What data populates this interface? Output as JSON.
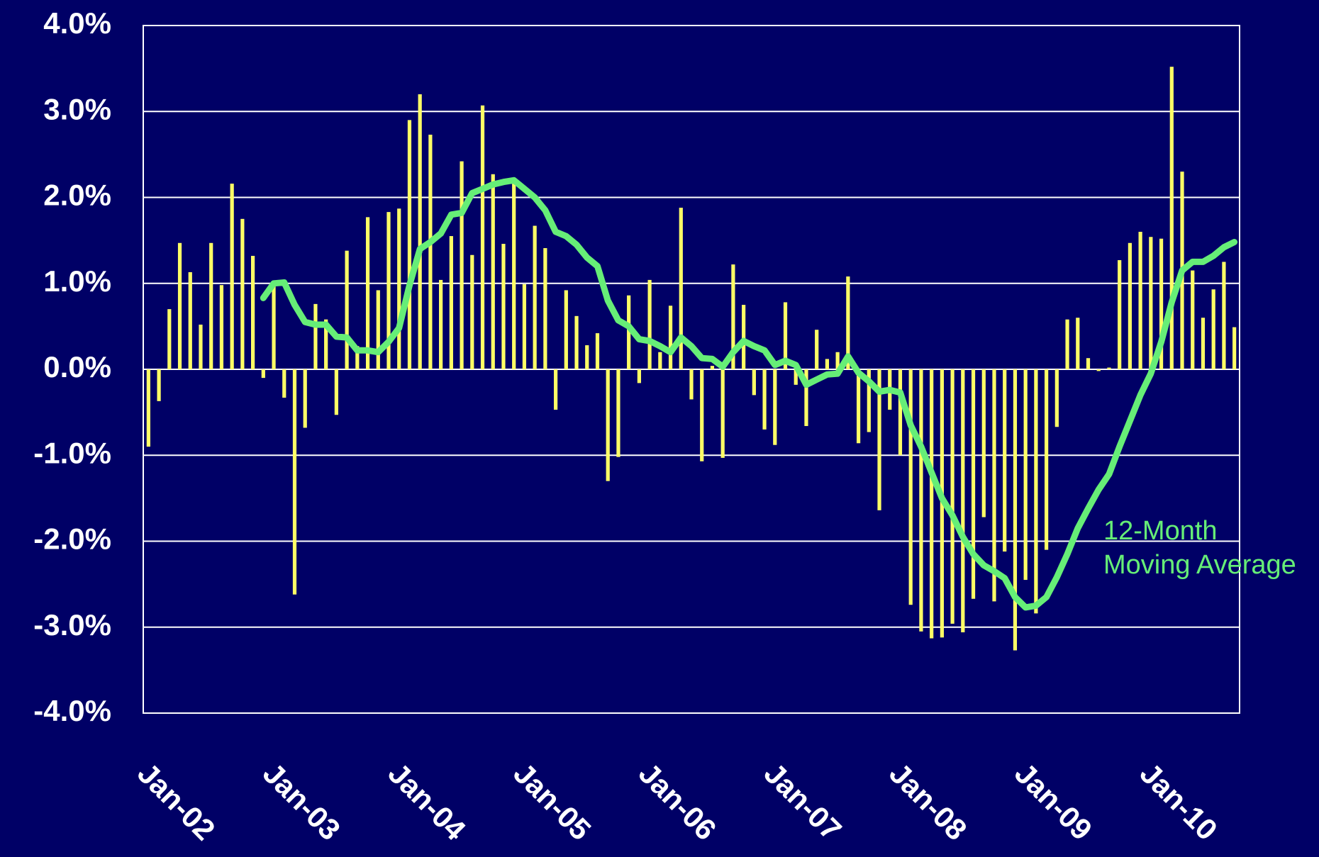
{
  "chart_data": {
    "type": "bar-line",
    "categories": [
      "Jan-02",
      null,
      null,
      null,
      null,
      null,
      null,
      null,
      null,
      null,
      null,
      null,
      "Jan-03",
      null,
      null,
      null,
      null,
      null,
      null,
      null,
      null,
      null,
      null,
      null,
      "Jan-04",
      null,
      null,
      null,
      null,
      null,
      null,
      null,
      null,
      null,
      null,
      null,
      "Jan-05",
      null,
      null,
      null,
      null,
      null,
      null,
      null,
      null,
      null,
      null,
      null,
      "Jan-06",
      null,
      null,
      null,
      null,
      null,
      null,
      null,
      null,
      null,
      null,
      null,
      "Jan-07",
      null,
      null,
      null,
      null,
      null,
      null,
      null,
      null,
      null,
      null,
      null,
      "Jan-08",
      null,
      null,
      null,
      null,
      null,
      null,
      null,
      null,
      null,
      null,
      null,
      "Jan-09",
      null,
      null,
      null,
      null,
      null,
      null,
      null,
      null,
      null,
      null,
      null,
      "Jan-10",
      null,
      null,
      null,
      null,
      null,
      null,
      null,
      null
    ],
    "series": [
      {
        "type": "bar",
        "color": "#ffff66",
        "values": [
          -0.9,
          -0.37,
          0.7,
          1.47,
          1.13,
          0.52,
          1.47,
          0.98,
          2.16,
          1.75,
          1.32,
          -0.1,
          0.97,
          -0.33,
          -2.62,
          -0.68,
          0.76,
          0.58,
          -0.53,
          1.38,
          0.27,
          1.77,
          0.92,
          1.83,
          1.87,
          2.9,
          3.2,
          2.73,
          1.04,
          1.55,
          2.42,
          1.33,
          3.07,
          2.27,
          1.46,
          2.2,
          0.99,
          1.67,
          1.41,
          -0.47,
          0.92,
          0.62,
          0.28,
          0.42,
          -1.3,
          -1.02,
          0.86,
          -0.16,
          1.04,
          0.2,
          0.74,
          1.88,
          -0.35,
          -1.07,
          0.04,
          -1.03,
          1.22,
          0.75,
          -0.3,
          -0.7,
          -0.88,
          0.78,
          -0.18,
          -0.66,
          0.46,
          0.12,
          0.2,
          1.08,
          -0.86,
          -0.73,
          -1.64,
          -0.47,
          -1.0,
          -2.74,
          -3.05,
          -3.13,
          -3.12,
          -2.96,
          -3.06,
          -2.67,
          -1.72,
          -2.7,
          -2.12,
          -3.27,
          -2.45,
          -2.84,
          -2.1,
          -0.67,
          0.58,
          0.6,
          0.13,
          -0.02,
          0.02,
          1.27,
          1.47,
          1.6,
          1.54,
          1.52,
          3.52,
          2.3,
          1.15,
          0.6,
          0.93,
          1.25,
          0.49
        ]
      },
      {
        "type": "line",
        "color": "#66ee77",
        "values": [
          null,
          null,
          null,
          null,
          null,
          null,
          null,
          null,
          null,
          null,
          null,
          0.83,
          1.0,
          1.01,
          0.75,
          0.55,
          0.52,
          0.52,
          0.38,
          0.37,
          0.22,
          0.22,
          0.2,
          0.32,
          0.48,
          0.98,
          1.4,
          1.48,
          1.58,
          1.8,
          1.82,
          2.05,
          2.1,
          2.15,
          2.18,
          2.2,
          2.1,
          2.0,
          1.85,
          1.6,
          1.55,
          1.45,
          1.3,
          1.2,
          0.8,
          0.57,
          0.5,
          0.35,
          0.33,
          0.27,
          0.2,
          0.37,
          0.27,
          0.13,
          0.12,
          0.03,
          0.2,
          0.33,
          0.27,
          0.22,
          0.05,
          0.1,
          0.05,
          -0.18,
          -0.12,
          -0.06,
          -0.05,
          0.15,
          -0.04,
          -0.14,
          -0.26,
          -0.24,
          -0.27,
          -0.65,
          -0.9,
          -1.2,
          -1.5,
          -1.7,
          -1.95,
          -2.15,
          -2.28,
          -2.35,
          -2.43,
          -2.65,
          -2.77,
          -2.75,
          -2.65,
          -2.42,
          -2.15,
          -1.85,
          -1.62,
          -1.4,
          -1.22,
          -0.9,
          -0.6,
          -0.3,
          -0.05,
          0.32,
          0.78,
          1.15,
          1.25,
          1.25,
          1.32,
          1.42,
          1.48
        ]
      }
    ],
    "annotation": [
      "12-Month",
      "Moving Average"
    ],
    "ylim": [
      -4,
      4
    ],
    "yticks": [
      {
        "value": -4,
        "label": "-4.0%"
      },
      {
        "value": -3,
        "label": "-3.0%"
      },
      {
        "value": -2,
        "label": "-2.0%"
      },
      {
        "value": -1,
        "label": "-1.0%"
      },
      {
        "value": 0,
        "label": "0.0%"
      },
      {
        "value": 1,
        "label": "1.0%"
      },
      {
        "value": 2,
        "label": "2.0%"
      },
      {
        "value": 3,
        "label": "3.0%"
      },
      {
        "value": 4,
        "label": "4.0%"
      }
    ],
    "grid": true
  }
}
